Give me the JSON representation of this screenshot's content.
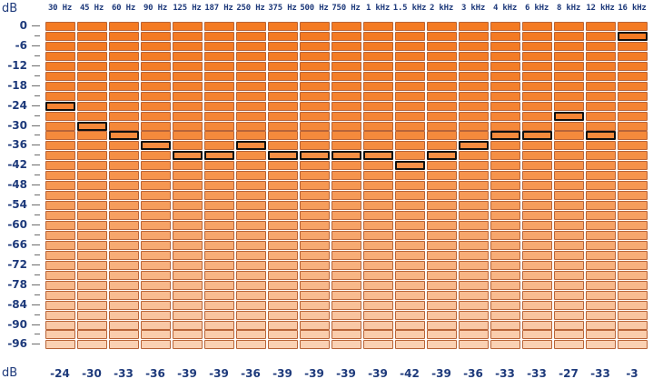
{
  "analyzer": {
    "unit_top": "dB",
    "unit_bottom": "dB",
    "db_scale": [
      "0",
      "-6",
      "-12",
      "-18",
      "-24",
      "-30",
      "-36",
      "-42",
      "-48",
      "-54",
      "-60",
      "-66",
      "-72",
      "-78",
      "-84",
      "-90",
      "-96"
    ],
    "segment_count": 33,
    "segment_step_db": 3,
    "colors": {
      "segment_top": "#f47a22",
      "segment_bottom": "#fad1b3",
      "segment_border": "#b86438",
      "peak_border": "#111111",
      "label_text": "#1e3a7b"
    },
    "bands": [
      {
        "freq": "30 Hz",
        "peak_db": -24,
        "value": "-24"
      },
      {
        "freq": "45 Hz",
        "peak_db": -30,
        "value": "-30"
      },
      {
        "freq": "60 Hz",
        "peak_db": -33,
        "value": "-33"
      },
      {
        "freq": "90 Hz",
        "peak_db": -36,
        "value": "-36"
      },
      {
        "freq": "125 Hz",
        "peak_db": -39,
        "value": "-39"
      },
      {
        "freq": "187 Hz",
        "peak_db": -39,
        "value": "-39"
      },
      {
        "freq": "250 Hz",
        "peak_db": -36,
        "value": "-36"
      },
      {
        "freq": "375 Hz",
        "peak_db": -39,
        "value": "-39"
      },
      {
        "freq": "500 Hz",
        "peak_db": -39,
        "value": "-39"
      },
      {
        "freq": "750 Hz",
        "peak_db": -39,
        "value": "-39"
      },
      {
        "freq": "1 kHz",
        "peak_db": -39,
        "value": "-39"
      },
      {
        "freq": "1.5 kHz",
        "peak_db": -42,
        "value": "-42"
      },
      {
        "freq": "2 kHz",
        "peak_db": -39,
        "value": "-39"
      },
      {
        "freq": "3 kHz",
        "peak_db": -36,
        "value": "-36"
      },
      {
        "freq": "4 kHz",
        "peak_db": -33,
        "value": "-33"
      },
      {
        "freq": "6 kHz",
        "peak_db": -33,
        "value": "-33"
      },
      {
        "freq": "8 kHz",
        "peak_db": -27,
        "value": "-27"
      },
      {
        "freq": "12 kHz",
        "peak_db": -33,
        "value": "-33"
      },
      {
        "freq": "16 kHz",
        "peak_db": -3,
        "value": "-3"
      }
    ]
  }
}
